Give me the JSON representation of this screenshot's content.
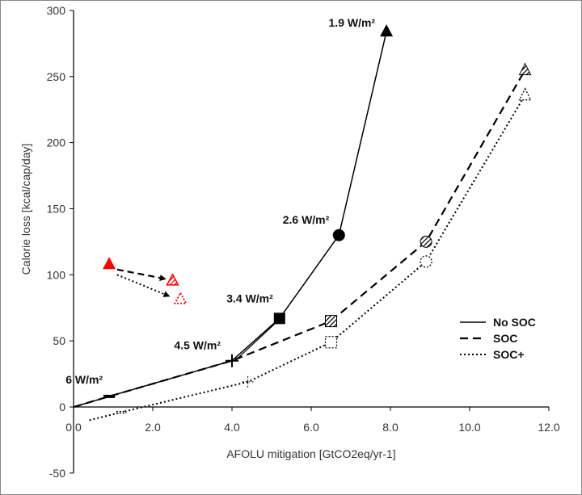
{
  "chart_data": {
    "type": "line",
    "xlabel": "AFOLU mitigation [GtCO2eq/yr-1]",
    "ylabel": "Calorie loss [kcal/cap/day]",
    "xlim": [
      0,
      12
    ],
    "ylim": [
      -50,
      300
    ],
    "xticks": [
      "0.0",
      "2.0",
      "4.0",
      "6.0",
      "8.0",
      "10.0",
      "12.0"
    ],
    "yticks": [
      "-50",
      "0",
      "50",
      "100",
      "150",
      "200",
      "250",
      "300"
    ],
    "grid": false,
    "legend_position": "right",
    "series": [
      {
        "name": "No SOC",
        "style": "solid",
        "x": [
          0,
          0.9,
          4.0,
          5.2,
          6.7,
          7.9
        ],
        "y": [
          0,
          8,
          35,
          67,
          130,
          284
        ]
      },
      {
        "name": "SOC",
        "style": "dashed",
        "x": [
          0,
          0.9,
          4.0,
          6.5,
          8.9,
          11.4
        ],
        "y": [
          0,
          8,
          35,
          65,
          125,
          255
        ]
      },
      {
        "name": "SOC+",
        "style": "dotted",
        "x": [
          0.4,
          1.2,
          4.4,
          6.5,
          8.9,
          11.4
        ],
        "y": [
          -10,
          -4,
          19,
          49,
          110,
          236
        ]
      }
    ],
    "annotations": [
      {
        "text": "6 W/m²",
        "x": 0.9,
        "y": 8,
        "marker": "dash"
      },
      {
        "text": "4.5 W/m²",
        "x": 4.0,
        "y": 35,
        "marker": "plus"
      },
      {
        "text": "3.4 W/m²",
        "x": 5.2,
        "y": 67,
        "marker": "square"
      },
      {
        "text": "2.6 W/m²",
        "x": 6.7,
        "y": 130,
        "marker": "circle"
      },
      {
        "text": "1.9 W/m²",
        "x": 7.9,
        "y": 284,
        "marker": "triangle"
      }
    ],
    "red_markers": [
      {
        "series": "No SOC",
        "x": 0.9,
        "y": 108
      },
      {
        "series": "SOC",
        "x": 2.5,
        "y": 96
      },
      {
        "series": "SOC+",
        "x": 2.7,
        "y": 82
      }
    ],
    "colors": {
      "line": "#000000",
      "highlight": "#ff0000"
    }
  }
}
